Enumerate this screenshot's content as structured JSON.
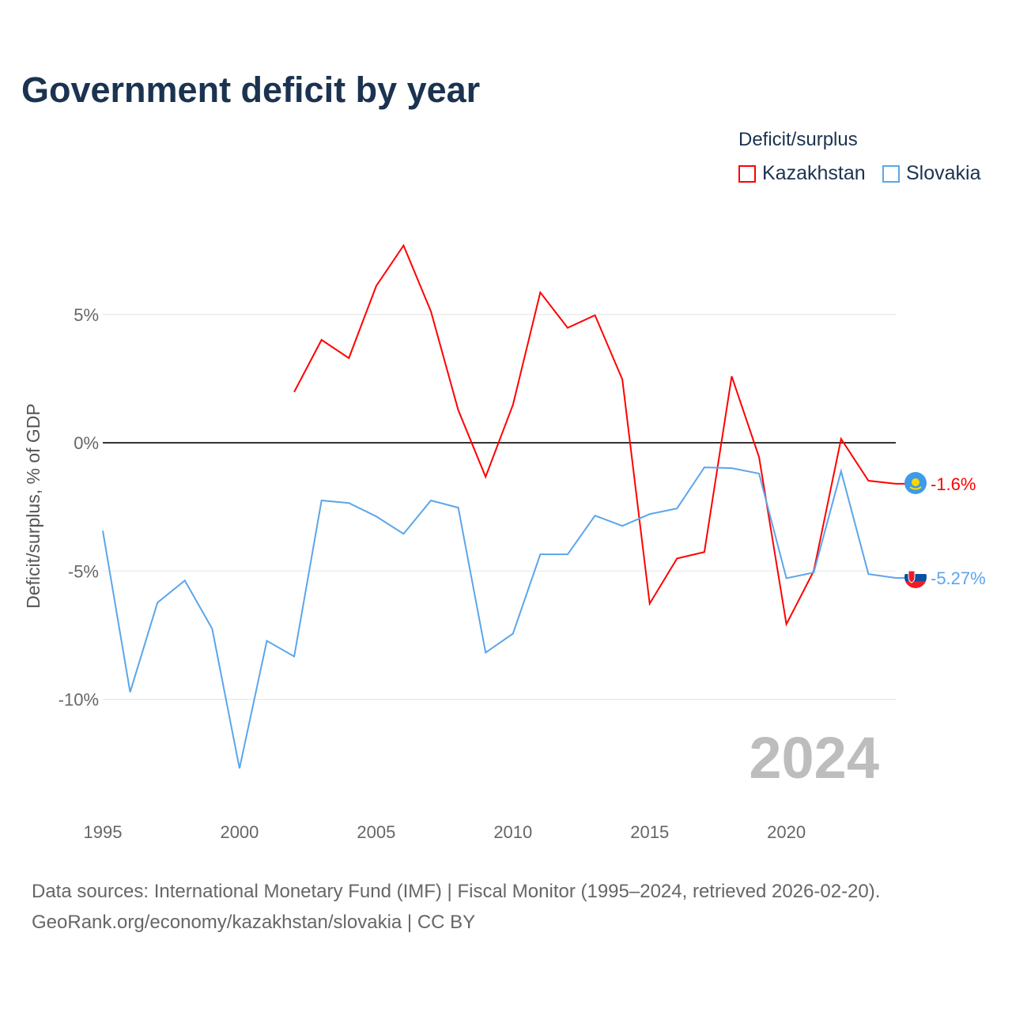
{
  "title": "Government deficit by year",
  "legend": {
    "title": "Deficit/surplus",
    "items": [
      {
        "label": "Kazakhstan",
        "color": "#ff0000"
      },
      {
        "label": "Slovakia",
        "color": "#5aa6eb"
      }
    ]
  },
  "year_label": "2024",
  "source": {
    "line1": "Data sources: International Monetary Fund (IMF) | Fiscal Monitor (1995–2024, retrieved 2026-02-20).",
    "line2": "GeoRank.org/economy/kazakhstan/slovakia | CC BY"
  },
  "chart_data": {
    "type": "line",
    "title": "Government deficit by year",
    "xlabel": "",
    "ylabel": "Deficit/surplus, % of GDP",
    "xlim": [
      1995,
      2024
    ],
    "ylim": [
      -13.5,
      8.5
    ],
    "x_ticks": [
      "1995",
      "2000",
      "2005",
      "2010",
      "2015",
      "2020"
    ],
    "y_ticks": [
      {
        "value": 5,
        "label": "5%"
      },
      {
        "value": 0,
        "label": "0%"
      },
      {
        "value": -5,
        "label": "-5%"
      },
      {
        "value": -10,
        "label": "-10%"
      }
    ],
    "grid": true,
    "legend_position": "top-right",
    "series": [
      {
        "name": "Kazakhstan",
        "color": "#ff0000",
        "end_label": "-1.6%",
        "x": [
          2002,
          2003,
          2004,
          2005,
          2006,
          2007,
          2008,
          2009,
          2010,
          2011,
          2012,
          2013,
          2014,
          2015,
          2016,
          2017,
          2018,
          2019,
          2020,
          2021,
          2022,
          2023,
          2024
        ],
        "values": [
          1.98,
          4.01,
          3.3,
          6.11,
          7.69,
          5.12,
          1.27,
          -1.33,
          1.48,
          5.86,
          4.48,
          4.97,
          2.47,
          -6.27,
          -4.51,
          -4.26,
          2.59,
          -0.56,
          -7.07,
          -5.0,
          0.15,
          -1.48,
          -1.6
        ]
      },
      {
        "name": "Slovakia",
        "color": "#5aa6eb",
        "end_label": "-5.27%",
        "x": [
          1995,
          1996,
          1997,
          1998,
          1999,
          2000,
          2001,
          2002,
          2003,
          2004,
          2005,
          2006,
          2007,
          2008,
          2009,
          2010,
          2011,
          2012,
          2013,
          2014,
          2015,
          2016,
          2017,
          2018,
          2019,
          2020,
          2021,
          2022,
          2023,
          2024
        ],
        "values": [
          -3.43,
          -9.72,
          -6.23,
          -5.37,
          -7.25,
          -12.69,
          -7.72,
          -8.33,
          -2.25,
          -2.35,
          -2.87,
          -3.55,
          -2.25,
          -2.53,
          -8.18,
          -7.44,
          -4.35,
          -4.35,
          -2.84,
          -3.24,
          -2.78,
          -2.56,
          -0.96,
          -0.99,
          -1.2,
          -5.28,
          -5.06,
          -1.11,
          -5.12,
          -5.27
        ]
      }
    ]
  }
}
